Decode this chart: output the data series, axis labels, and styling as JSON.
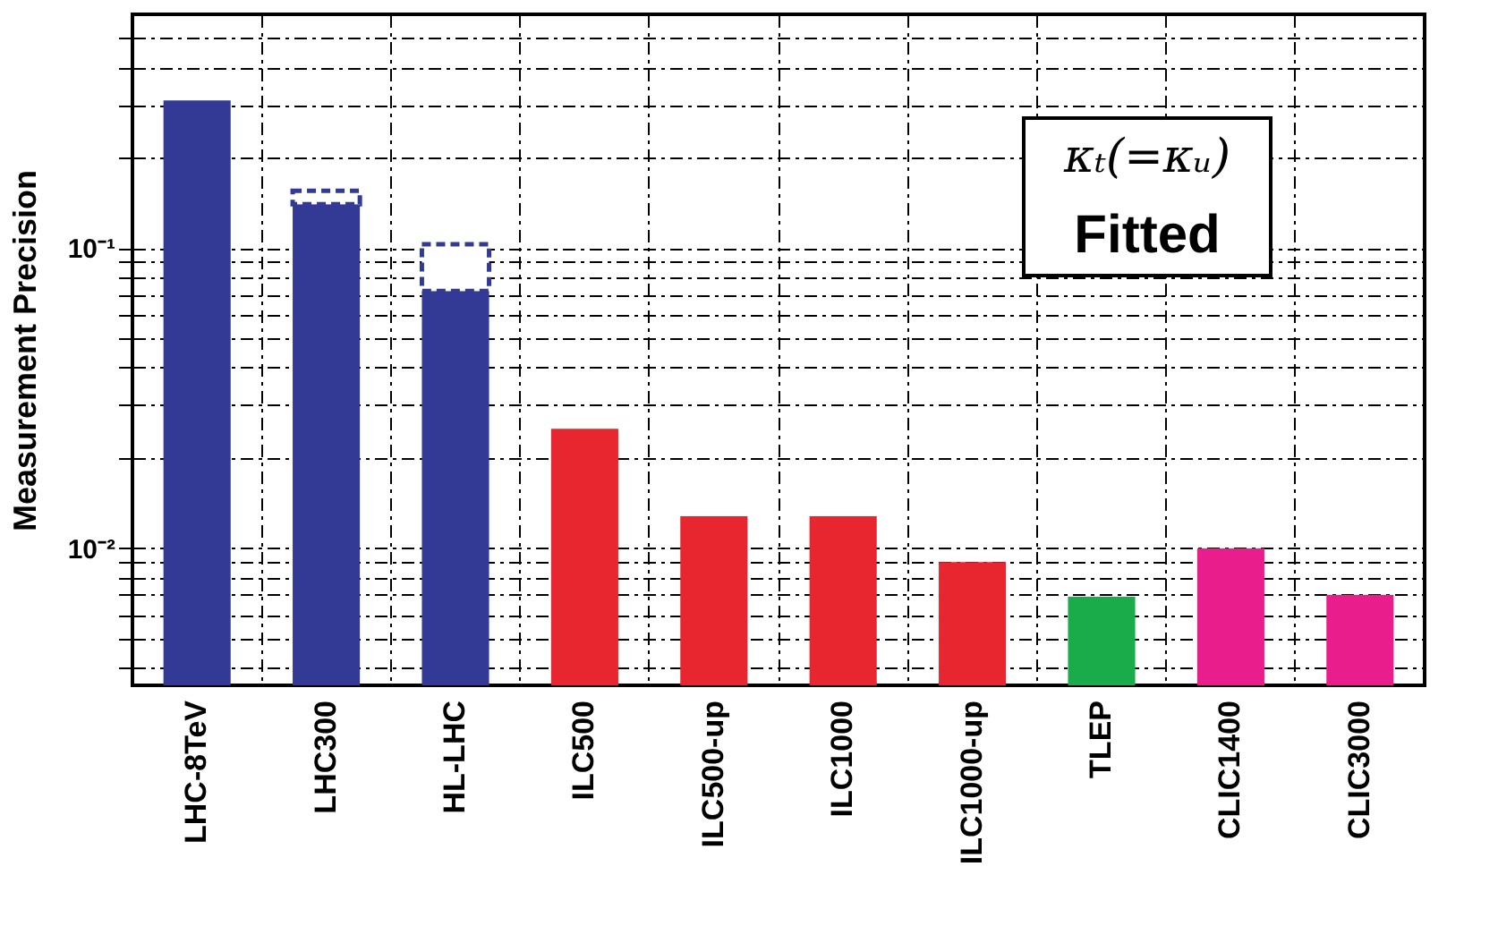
{
  "chart_data": {
    "type": "bar",
    "ylabel": "Measurement Precision",
    "categories": [
      "LHC-8TeV",
      "LHC300",
      "HL-LHC",
      "ILC500",
      "ILC500-up",
      "ILC1000",
      "ILC1000-up",
      "TLEP",
      "CLIC1400",
      "CLIC3000"
    ],
    "log": true,
    "ylim": [
      0.0035,
      0.6
    ],
    "yticks": [
      {
        "value": 0.004,
        "label": null
      },
      {
        "value": 0.005,
        "label": null
      },
      {
        "value": 0.006,
        "label": null
      },
      {
        "value": 0.007,
        "label": null
      },
      {
        "value": 0.008,
        "label": null
      },
      {
        "value": 0.009,
        "label": null
      },
      {
        "value": 0.01,
        "label": "10⁻²"
      },
      {
        "value": 0.02,
        "label": null
      },
      {
        "value": 0.03,
        "label": null
      },
      {
        "value": 0.04,
        "label": null
      },
      {
        "value": 0.05,
        "label": null
      },
      {
        "value": 0.06,
        "label": null
      },
      {
        "value": 0.07,
        "label": null
      },
      {
        "value": 0.08,
        "label": null
      },
      {
        "value": 0.09,
        "label": null
      },
      {
        "value": 0.1,
        "label": "10⁻¹"
      },
      {
        "value": 0.2,
        "label": null
      },
      {
        "value": 0.3,
        "label": null
      },
      {
        "value": 0.4,
        "label": null
      },
      {
        "value": 0.5,
        "label": null
      }
    ],
    "grid": true,
    "series": [
      {
        "colors": [
          "#333a96",
          "#333a96",
          "#333a96",
          "#e8262f",
          "#e8262f",
          "#e8262f",
          "#e8262f",
          "#1aab4b",
          "#e91e8c",
          "#e91e8c"
        ],
        "values": [
          0.31,
          0.14,
          0.072,
          0.025,
          0.0128,
          0.0128,
          0.009,
          0.0069,
          0.01,
          0.007
        ]
      },
      {
        "color": "#ffffff",
        "line_style": "dashed",
        "base": [
          null,
          0.14,
          0.072,
          null,
          null,
          null,
          null,
          null,
          null,
          null
        ],
        "values": [
          null,
          0.015,
          0.031,
          null,
          null,
          null,
          null,
          null,
          null,
          null
        ]
      }
    ],
    "annotations": [
      "κₜ(=κᵤ)",
      "Fitted"
    ]
  }
}
